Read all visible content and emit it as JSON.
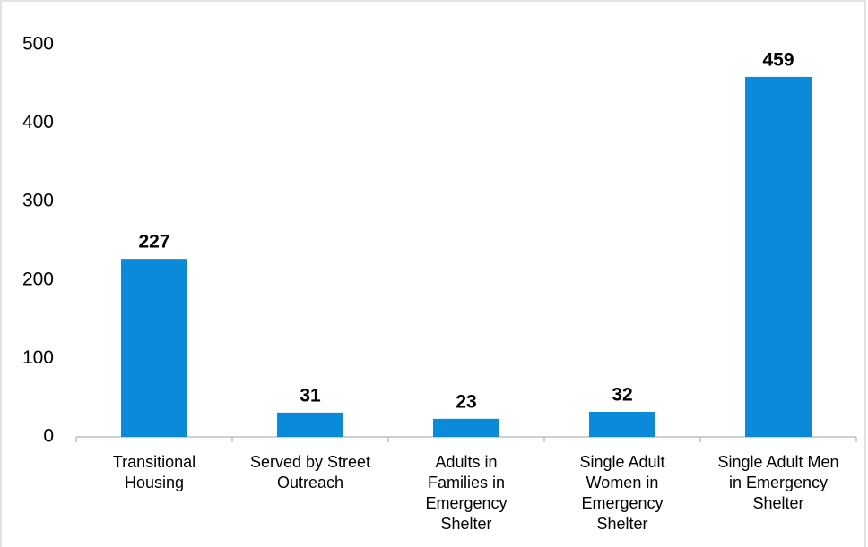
{
  "chart_data": {
    "type": "bar",
    "categories": [
      "Transitional\nHousing",
      "Served by Street\nOutreach",
      "Adults in\nFamilies in\nEmergency\nShelter",
      "Single Adult\nWomen in\nEmergency\nShelter",
      "Single Adult Men\nin Emergency\nShelter"
    ],
    "values": [
      227,
      31,
      23,
      32,
      459
    ],
    "color": "#0a8ad8",
    "ylim": [
      0,
      500
    ],
    "yticks": [
      0,
      100,
      200,
      300,
      400,
      500
    ],
    "grid": false
  }
}
